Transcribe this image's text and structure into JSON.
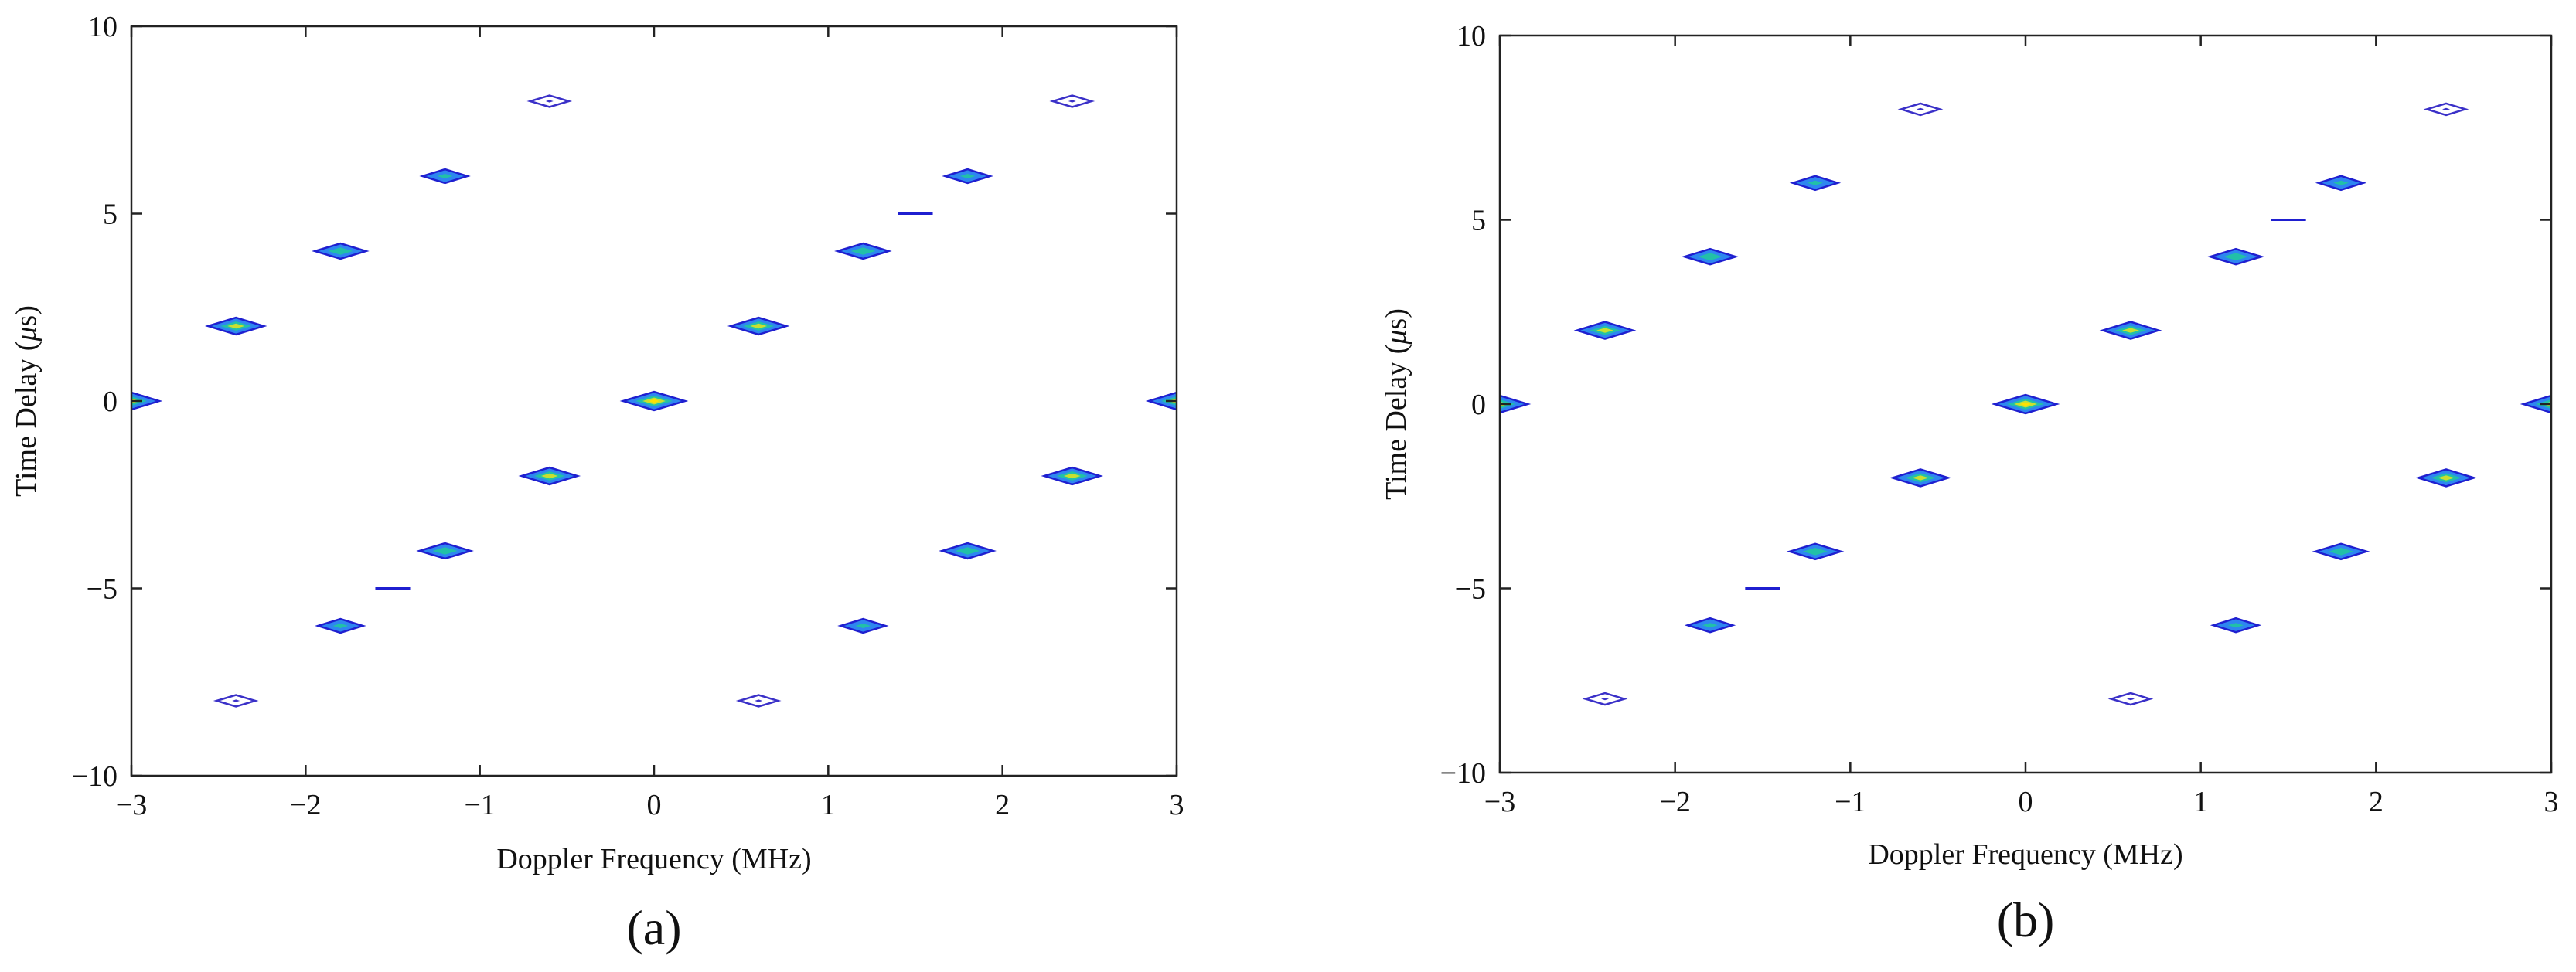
{
  "panels": [
    {
      "label": "(a)"
    },
    {
      "label": "(b)"
    }
  ],
  "colors": {
    "outer_contour": "#1f1fd0",
    "mid_contour": "#2e86f0",
    "inner_contour": "#22c0a8",
    "core": "#c8e030",
    "peak": "#ffe000",
    "faint_contour": "#3a30c8"
  },
  "chart_data": [
    {
      "type": "contour",
      "panel_label": "(a)",
      "xlabel": "Doppler Frequency (MHz)",
      "ylabel_prefix": "Time Delay (",
      "ylabel_unit_symbol": "μ",
      "ylabel_suffix": "s)",
      "xlim": [
        -3,
        3
      ],
      "ylim": [
        -10,
        10
      ],
      "xticks": [
        -3,
        -2,
        -1,
        0,
        1,
        2,
        3
      ],
      "xtick_labels": [
        "−3",
        "−2",
        "−1",
        "0",
        "1",
        "2",
        "3"
      ],
      "yticks": [
        -10,
        -5,
        0,
        5,
        10
      ],
      "ytick_labels": [
        "−10",
        "−5",
        "0",
        "5",
        "10"
      ],
      "grid": false,
      "peaks": [
        {
          "x": -3.0,
          "y": 0,
          "level": 3
        },
        {
          "x": 0.0,
          "y": 0,
          "level": 4
        },
        {
          "x": 3.0,
          "y": 0,
          "level": 3
        },
        {
          "x": -2.4,
          "y": 2,
          "level": 3
        },
        {
          "x": -1.8,
          "y": 4,
          "level": 2
        },
        {
          "x": -1.2,
          "y": 6,
          "level": 1
        },
        {
          "x": -0.6,
          "y": 8,
          "level": 0
        },
        {
          "x": 0.6,
          "y": 2,
          "level": 3
        },
        {
          "x": 1.2,
          "y": 4,
          "level": 2
        },
        {
          "x": 1.8,
          "y": 6,
          "level": 1
        },
        {
          "x": 2.4,
          "y": 8,
          "level": 0
        },
        {
          "x": -0.6,
          "y": -2,
          "level": 3
        },
        {
          "x": -1.2,
          "y": -4,
          "level": 2
        },
        {
          "x": -1.8,
          "y": -6,
          "level": 1
        },
        {
          "x": -2.4,
          "y": -8,
          "level": 0
        },
        {
          "x": 2.4,
          "y": -2,
          "level": 3
        },
        {
          "x": 1.8,
          "y": -4,
          "level": 2
        },
        {
          "x": 1.2,
          "y": -6,
          "level": 1
        },
        {
          "x": 0.6,
          "y": -8,
          "level": 0
        }
      ],
      "line_segments": [
        {
          "x1": 1.4,
          "x2": 1.6,
          "y": 5
        },
        {
          "x1": -1.6,
          "x2": -1.4,
          "y": -5
        }
      ]
    },
    {
      "type": "contour",
      "panel_label": "(b)",
      "xlabel": "Doppler Frequency (MHz)",
      "ylabel_prefix": "Time Delay (",
      "ylabel_unit_symbol": "μ",
      "ylabel_suffix": "s)",
      "xlim": [
        -3,
        3
      ],
      "ylim": [
        -10,
        10
      ],
      "xticks": [
        -3,
        -2,
        -1,
        0,
        1,
        2,
        3
      ],
      "xtick_labels": [
        "−3",
        "−2",
        "−1",
        "0",
        "1",
        "2",
        "3"
      ],
      "yticks": [
        -10,
        -5,
        0,
        5,
        10
      ],
      "ytick_labels": [
        "−10",
        "−5",
        "0",
        "5",
        "10"
      ],
      "grid": false,
      "peaks": [
        {
          "x": -3.0,
          "y": 0,
          "level": 3
        },
        {
          "x": 0.0,
          "y": 0,
          "level": 4
        },
        {
          "x": 3.0,
          "y": 0,
          "level": 3
        },
        {
          "x": -2.4,
          "y": 2,
          "level": 3
        },
        {
          "x": -1.8,
          "y": 4,
          "level": 2
        },
        {
          "x": -1.2,
          "y": 6,
          "level": 1
        },
        {
          "x": -0.6,
          "y": 8,
          "level": 0
        },
        {
          "x": 0.6,
          "y": 2,
          "level": 3
        },
        {
          "x": 1.2,
          "y": 4,
          "level": 2
        },
        {
          "x": 1.8,
          "y": 6,
          "level": 1
        },
        {
          "x": 2.4,
          "y": 8,
          "level": 0
        },
        {
          "x": -0.6,
          "y": -2,
          "level": 3
        },
        {
          "x": -1.2,
          "y": -4,
          "level": 2
        },
        {
          "x": -1.8,
          "y": -6,
          "level": 1
        },
        {
          "x": -2.4,
          "y": -8,
          "level": 0
        },
        {
          "x": 2.4,
          "y": -2,
          "level": 3
        },
        {
          "x": 1.8,
          "y": -4,
          "level": 2
        },
        {
          "x": 1.2,
          "y": -6,
          "level": 1
        },
        {
          "x": 0.6,
          "y": -8,
          "level": 0
        }
      ],
      "line_segments": [
        {
          "x1": 1.4,
          "x2": 1.6,
          "y": 5
        },
        {
          "x1": -1.6,
          "x2": -1.4,
          "y": -5
        }
      ]
    }
  ]
}
